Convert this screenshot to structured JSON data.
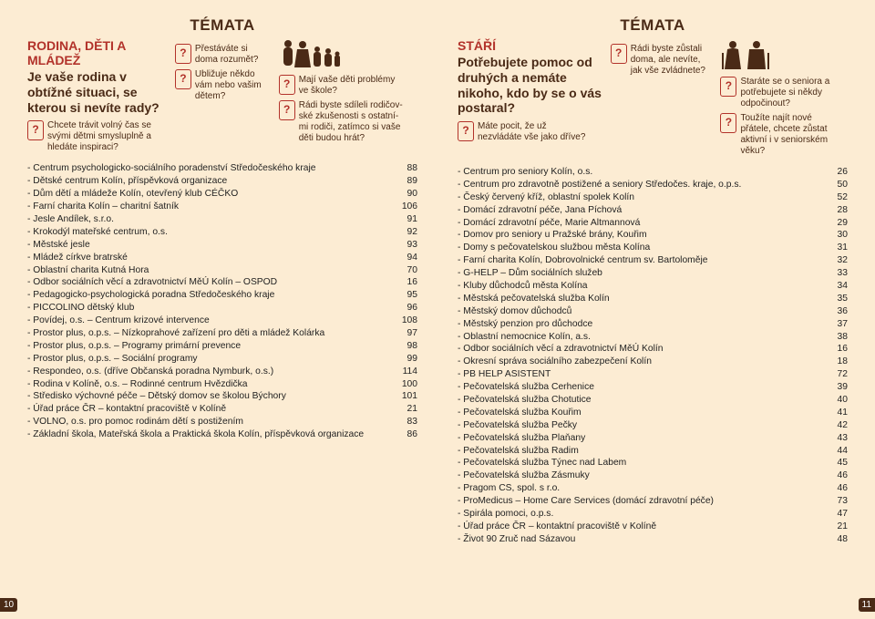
{
  "left": {
    "header": "TÉMATA",
    "sectionTitle": "RODINA, DĚTI A MLÁDEŽ",
    "lead": "Je vaše rodina v obtížné situaci, se kterou si neví­te rady?",
    "callouts": [
      "Chcete trávit volný čas se svými dětmi smyslu­plně a hledáte inspiraci?",
      "Přestáváte si doma rozumět?",
      "Ubližuje někdo vám nebo vašim dětem?",
      "Mají vaše děti problémy ve škole?",
      "Rádi byste sdíleli rodičov­ské zkušenosti s ostatní­mi rodiči, zatímco si vaše děti budou hrát?"
    ],
    "rows": [
      [
        "- Centrum psychologicko-sociálního poradenství Středočeského kraje",
        "88"
      ],
      [
        "- Dětské centrum Kolín, příspěvková organizace",
        "89"
      ],
      [
        "- Dům dětí a mládeže Kolín, otevřený klub CÉČKO",
        "90"
      ],
      [
        "- Farní charita Kolín – charitní šatník",
        "106"
      ],
      [
        "- Jesle Andílek, s.r.o.",
        "91"
      ],
      [
        "- Krokodýl mateřské centrum, o.s.",
        "92"
      ],
      [
        "- Městské jesle",
        "93"
      ],
      [
        "- Mládež církve bratrské",
        "94"
      ],
      [
        "- Oblastní charita Kutná Hora",
        "70"
      ],
      [
        "- Odbor sociálních věcí a zdravotnictví MěÚ Kolín – OSPOD",
        "16"
      ],
      [
        "- Pedagogicko-psychologická poradna Středočeského kraje",
        "95"
      ],
      [
        "- PICCOLINO dětský klub",
        "96"
      ],
      [
        "- Povídej, o.s. – Centrum krizové intervence",
        "108"
      ],
      [
        "- Prostor plus, o.p.s. – Nízkoprahové zařízení pro děti a mládež Kolárka",
        "97"
      ],
      [
        "- Prostor plus, o.p.s. – Programy primární prevence",
        "98"
      ],
      [
        "- Prostor plus, o.p.s. – Sociální programy",
        "99"
      ],
      [
        "- Respondeo, o.s. (dříve Občanská poradna Nymburk, o.s.)",
        "114"
      ],
      [
        "- Rodina v Kolíně, o.s. – Rodinné centrum Hvězdička",
        "100"
      ],
      [
        "- Středisko výchovné péče – Dětský domov se školou Býchory",
        "101"
      ],
      [
        "- Úřad práce ČR – kontaktní pracoviště v Kolíně",
        "21"
      ],
      [
        "- VOLNO, o.s. pro pomoc rodinám dětí s postižením",
        "83"
      ],
      [
        "- Základní škola, Mateřská škola a Praktická škola Kolín, příspěvková organizace",
        "86"
      ]
    ],
    "pageNumber": "10"
  },
  "right": {
    "header": "TÉMATA",
    "sectionTitle": "STÁŘÍ",
    "lead": "Potřebujete pomoc od druhých a nemá­te nikoho, kdo by se o vás postaral?",
    "callouts": [
      "Máte pocit, že už nezvládáte vše jako dříve?",
      "Rádi byste zůstali doma, ale nevíte, jak vše zvládnete?",
      "Staráte se o seniora a potřebujete si ně­kdy odpočinout?",
      "Toužíte najít nové přátele, chcete zůstat aktivní i v seniorském věku?"
    ],
    "rows": [
      [
        "- Centrum pro seniory Kolín, o.s.",
        "26"
      ],
      [
        "- Centrum pro zdravotně postižené a seniory Středočes. kraje, o.p.s.",
        "50"
      ],
      [
        "- Český červený kříž, oblastní spolek Kolín",
        "52"
      ],
      [
        "- Domácí zdravotní péče, Jana Píchová",
        "28"
      ],
      [
        "- Domácí zdravotní péče, Marie Altmannová",
        "29"
      ],
      [
        "- Domov pro seniory u Pražské brány, Kouřim",
        "30"
      ],
      [
        "- Domy s pečovatelskou službou města Kolína",
        "31"
      ],
      [
        "- Farní charita Kolín, Dobrovolnické centrum sv. Bartoloměje",
        "32"
      ],
      [
        "- G-HELP – Dům sociálních služeb",
        "33"
      ],
      [
        "- Kluby důchodců města Kolína",
        "34"
      ],
      [
        "- Městská pečovatelská služba Kolín",
        "35"
      ],
      [
        "- Městský domov důchodců",
        "36"
      ],
      [
        "- Městský penzion pro důchodce",
        "37"
      ],
      [
        "- Oblastní nemocnice Kolín, a.s.",
        "38"
      ],
      [
        "- Odbor sociálních věcí a zdravotnictví MěÚ Kolín",
        "16"
      ],
      [
        "- Okresní správa sociálního zabezpečení Kolín",
        "18"
      ],
      [
        "- PB HELP ASISTENT",
        "72"
      ],
      [
        "- Pečovatelská služba Cerhenice",
        "39"
      ],
      [
        "- Pečovatelská služba Chotutice",
        "40"
      ],
      [
        "- Pečovatelská služba Kouřim",
        "41"
      ],
      [
        "- Pečovatelská služba Pečky",
        "42"
      ],
      [
        "- Pečovatelská služba Plaňany",
        "43"
      ],
      [
        "- Pečovatelská služba Radim",
        "44"
      ],
      [
        "- Pečovatelská služba Týnec nad Labem",
        "45"
      ],
      [
        "- Pečovatelská služba Zásmuky",
        "46"
      ],
      [
        "- Pragom CS, spol. s r.o.",
        "46"
      ],
      [
        "- ProMedicus – Home Care Services (domácí zdravotní péče)",
        "73"
      ],
      [
        "- Spirála pomoci, o.p.s.",
        "47"
      ],
      [
        "- Úřad práce ČR – kontaktní pracoviště v Kolíně",
        "21"
      ],
      [
        "- Život 90 Zruč nad Sázavou",
        "48"
      ]
    ],
    "pageNumber": "11"
  },
  "colors": {
    "bg": "#fcecd3",
    "heading": "#4a2a16",
    "accent": "#b2322a",
    "text": "#222222"
  }
}
